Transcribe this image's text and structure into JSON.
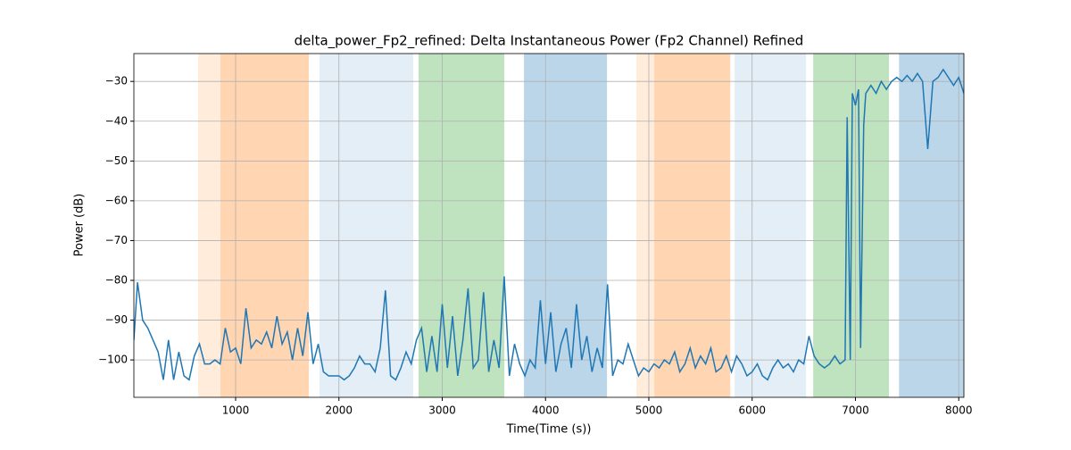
{
  "chart_data": {
    "type": "line",
    "title": "delta_power_Fp2_refined: Delta Instantaneous Power (Fp2 Channel) Refined",
    "xlabel": "Time(Time (s))",
    "ylabel": "Power (dB)",
    "xlim": [
      15,
      8050
    ],
    "ylim": [
      -109.4,
      -23
    ],
    "xticks": [
      1000,
      2000,
      3000,
      4000,
      5000,
      6000,
      7000,
      8000
    ],
    "yticks": [
      {
        "value": -100,
        "label": "−100"
      },
      {
        "value": -90,
        "label": "−90"
      },
      {
        "value": -80,
        "label": "−80"
      },
      {
        "value": -70,
        "label": "−70"
      },
      {
        "value": -60,
        "label": "−60"
      },
      {
        "value": -50,
        "label": "−50"
      },
      {
        "value": -40,
        "label": "−40"
      },
      {
        "value": -30,
        "label": "−30"
      }
    ],
    "grid": true,
    "spans": [
      {
        "start": 637,
        "end": 1709,
        "color": "#ff7f0e",
        "opacity": 0.15
      },
      {
        "start": 853,
        "end": 1709,
        "color": "#ff7f0e",
        "opacity": 0.2
      },
      {
        "start": 1812,
        "end": 2719,
        "color": "#1f77b4",
        "opacity": 0.12
      },
      {
        "start": 2771,
        "end": 3601,
        "color": "#2ca02c",
        "opacity": 0.3
      },
      {
        "start": 3791,
        "end": 4595,
        "color": "#1f77b4",
        "opacity": 0.3
      },
      {
        "start": 4880,
        "end": 5788,
        "color": "#ff7f0e",
        "opacity": 0.15
      },
      {
        "start": 5053,
        "end": 5788,
        "color": "#ff7f0e",
        "opacity": 0.2
      },
      {
        "start": 5831,
        "end": 6522,
        "color": "#1f77b4",
        "opacity": 0.12
      },
      {
        "start": 6591,
        "end": 7325,
        "color": "#2ca02c",
        "opacity": 0.3
      },
      {
        "start": 7422,
        "end": 8050,
        "color": "#1f77b4",
        "opacity": 0.3
      }
    ],
    "series": [
      {
        "color": "#1f77b4",
        "x": [
          15,
          50,
          100,
          150,
          200,
          250,
          300,
          350,
          400,
          450,
          500,
          550,
          600,
          650,
          700,
          750,
          800,
          850,
          900,
          950,
          1000,
          1050,
          1100,
          1150,
          1200,
          1250,
          1300,
          1350,
          1400,
          1450,
          1500,
          1550,
          1600,
          1650,
          1700,
          1750,
          1800,
          1850,
          1900,
          1950,
          2000,
          2050,
          2100,
          2150,
          2200,
          2250,
          2300,
          2350,
          2400,
          2450,
          2500,
          2550,
          2600,
          2650,
          2700,
          2750,
          2800,
          2850,
          2900,
          2950,
          3000,
          3050,
          3100,
          3150,
          3200,
          3250,
          3300,
          3350,
          3400,
          3450,
          3500,
          3550,
          3600,
          3650,
          3700,
          3750,
          3800,
          3850,
          3900,
          3950,
          4000,
          4050,
          4100,
          4150,
          4200,
          4250,
          4300,
          4350,
          4400,
          4450,
          4500,
          4550,
          4600,
          4650,
          4700,
          4750,
          4800,
          4850,
          4900,
          4950,
          5000,
          5050,
          5100,
          5150,
          5200,
          5250,
          5300,
          5350,
          5400,
          5450,
          5500,
          5550,
          5600,
          5650,
          5700,
          5750,
          5800,
          5850,
          5900,
          5950,
          6000,
          6050,
          6100,
          6150,
          6200,
          6250,
          6300,
          6350,
          6400,
          6450,
          6500,
          6550,
          6600,
          6650,
          6700,
          6750,
          6800,
          6850,
          6900,
          6920,
          6950,
          6970,
          7000,
          7030,
          7050,
          7080,
          7100,
          7150,
          7200,
          7250,
          7300,
          7350,
          7400,
          7450,
          7500,
          7550,
          7600,
          7650,
          7700,
          7750,
          7800,
          7850,
          7900,
          7950,
          8000,
          8050
        ],
        "values": [
          -95,
          -80.5,
          -90,
          -92,
          -95,
          -98,
          -105,
          -95,
          -105,
          -98,
          -104,
          -105,
          -99,
          -96,
          -101,
          -101,
          -100,
          -101,
          -92,
          -98,
          -97,
          -101,
          -87,
          -97,
          -95,
          -96,
          -93,
          -97,
          -89,
          -96,
          -93,
          -100,
          -92,
          -99,
          -88,
          -101,
          -96,
          -103,
          -104,
          -104,
          -104,
          -105,
          -104,
          -102,
          -99,
          -101,
          -101,
          -103,
          -97,
          -82.5,
          -104,
          -105,
          -102,
          -98,
          -101,
          -95,
          -92,
          -103,
          -94,
          -103,
          -86,
          -102,
          -89,
          -104,
          -95,
          -82,
          -102,
          -100,
          -83,
          -103,
          -95,
          -102,
          -79,
          -104,
          -96,
          -101,
          -104,
          -100,
          -102,
          -85,
          -101,
          -88,
          -103,
          -96,
          -92,
          -102,
          -86,
          -100,
          -94,
          -103,
          -97,
          -102,
          -81,
          -104,
          -100,
          -101,
          -96,
          -100,
          -104,
          -102,
          -103,
          -101,
          -102,
          -100,
          -101,
          -98,
          -103,
          -101,
          -97,
          -102,
          -99,
          -101,
          -97,
          -103,
          -102,
          -99,
          -103,
          -99,
          -101,
          -104,
          -103,
          -101,
          -104,
          -105,
          -102,
          -100,
          -102,
          -101,
          -103,
          -100,
          -101,
          -94,
          -99,
          -101,
          -102,
          -101,
          -99,
          -101,
          -100,
          -39,
          -100,
          -33,
          -36,
          -32,
          -97,
          -41,
          -33,
          -31,
          -33,
          -30,
          -32,
          -30,
          -29,
          -30,
          -28.5,
          -30,
          -28,
          -30,
          -47,
          -30,
          -29,
          -27,
          -29,
          -31,
          -29,
          -33
        ]
      }
    ]
  }
}
